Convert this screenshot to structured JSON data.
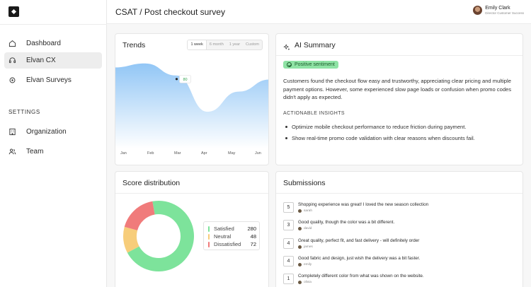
{
  "app": {
    "logo": "elvan-logo"
  },
  "nav": {
    "items": [
      {
        "label": "Dashboard",
        "icon": "home-icon"
      },
      {
        "label": "Elvan CX",
        "icon": "headset-icon",
        "active": true
      },
      {
        "label": "Elvan Surveys",
        "icon": "survey-icon"
      }
    ],
    "settings_label": "SETTINGS",
    "settings_items": [
      {
        "label": "Organization",
        "icon": "building-icon"
      },
      {
        "label": "Team",
        "icon": "team-icon"
      }
    ]
  },
  "header": {
    "title": "CSAT / Post checkout survey",
    "user": {
      "name": "Emily Clark",
      "role": "Director Customer Success"
    }
  },
  "trends": {
    "title": "Trends",
    "ranges": [
      "1 week",
      "6 month",
      "1 year",
      "Custom"
    ],
    "selected_range": "1 week",
    "tooltip_value": "80",
    "months": [
      "Jan",
      "Feb",
      "Mar",
      "Apr",
      "May",
      "Jun"
    ]
  },
  "chart_data": {
    "type": "area",
    "x": [
      "Jan",
      "Feb",
      "Mar",
      "Apr",
      "May",
      "Jun"
    ],
    "series": [
      {
        "values": [
          90,
          95,
          80,
          35,
          60,
          75
        ]
      }
    ],
    "highlight": {
      "x": "Mar",
      "value": 80
    },
    "color": "#8cc3f5"
  },
  "summary": {
    "title": "AI Summary",
    "sentiment": "Positive sentiment",
    "text": "Customers found the checkout flow easy and trustworthy, appreciating clear pricing and multiple payment options. However, some experienced slow page loads or confusion when promo codes didn't apply as expected.",
    "insights_label": "ACTIONABLE INSIGHTS",
    "insights": [
      "Optimize mobile checkout performance to reduce friction during payment.",
      "Show real-time promo code validation with clear reasons when discounts fail."
    ]
  },
  "distribution": {
    "title": "Score distribution",
    "segments": [
      {
        "label": "Satisfied",
        "value": 280,
        "color": "#7de39b"
      },
      {
        "label": "Neutral",
        "value": 48,
        "color": "#f7cd7a"
      },
      {
        "label": "Dissatisfied",
        "value": 72,
        "color": "#f07b7b"
      }
    ]
  },
  "submissions": {
    "title": "Submissions",
    "rows": [
      {
        "score": "5",
        "text": "Shopping experience was great! I loved the new season collection",
        "user": "sarah"
      },
      {
        "score": "3",
        "text": "Good quality, though the color was a bit different.",
        "user": "david"
      },
      {
        "score": "4",
        "text": "Great quality, perfect fit, and fast delivery - will definitely order",
        "user": "james"
      },
      {
        "score": "4",
        "text": "Good fabric and design, just wish the delivery was a bit faster.",
        "user": "emily"
      },
      {
        "score": "1",
        "text": "Completely different color from what was shown on the website.",
        "user": "olivia"
      }
    ]
  }
}
